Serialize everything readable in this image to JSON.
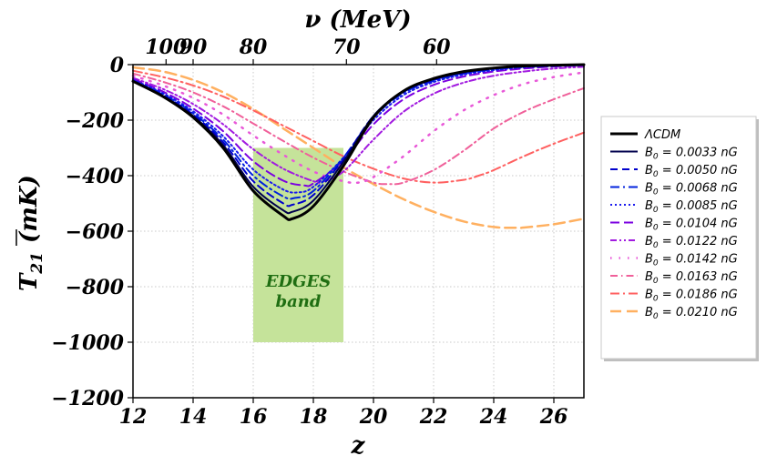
{
  "chart_data": {
    "type": "line",
    "xlabel": "z",
    "ylabel_main": "T",
    "ylabel_sub": "21",
    "ylabel_unit": "(mK)",
    "top_axis_label": "ν (MeV)",
    "xlim": [
      12,
      27
    ],
    "ylim": [
      -1200,
      0
    ],
    "x_ticks": [
      12,
      14,
      16,
      18,
      20,
      22,
      24,
      26
    ],
    "x_tick_labels": [
      "12",
      "14",
      "16",
      "18",
      "20",
      "22",
      "24",
      "26"
    ],
    "y_ticks": [
      0,
      -200,
      -400,
      -600,
      -800,
      -1000,
      -1200
    ],
    "y_tick_labels": [
      "0",
      "−200",
      "−400",
      "−600",
      "−800",
      "−1000",
      "−1200"
    ],
    "top_ticks": [
      {
        "label": "100",
        "z": 13.1
      },
      {
        "label": "90",
        "z": 14.0
      },
      {
        "label": "80",
        "z": 16.0
      },
      {
        "label": "70",
        "z": 19.1
      },
      {
        "label": "60",
        "z": 22.1
      }
    ],
    "grid": true,
    "band": {
      "label_line1": "EDGES",
      "label_line2": "band",
      "x_range": [
        16,
        19
      ],
      "y_range": [
        -1000,
        -300
      ]
    },
    "legend_position": "right",
    "series": [
      {
        "name": "ΛCDM",
        "legend_main": "ΛCDM",
        "legend_sub": "",
        "legend_val": "",
        "color": "#000000",
        "dash": "solid",
        "width": 3,
        "x": [
          12,
          13,
          14,
          15,
          16,
          17,
          17.3,
          18,
          19,
          20,
          21,
          22,
          23,
          24,
          25,
          26,
          27
        ],
        "y": [
          -60,
          -115,
          -190,
          -300,
          -455,
          -545,
          -555,
          -510,
          -365,
          -190,
          -95,
          -50,
          -25,
          -12,
          -5,
          -2,
          0
        ]
      },
      {
        "name": "B0 = 0.0033 nG",
        "legend_main": "B",
        "legend_sub": "0",
        "legend_val": " = 0.0033 nG",
        "color": "#00004d",
        "dash": "solid",
        "width": 2,
        "x": [
          12,
          13,
          14,
          15,
          16,
          17,
          17.3,
          18,
          19,
          20,
          21,
          22,
          23,
          24,
          25,
          26,
          27
        ],
        "y": [
          -60,
          -113,
          -185,
          -290,
          -440,
          -525,
          -530,
          -490,
          -350,
          -185,
          -95,
          -52,
          -27,
          -13,
          -6,
          -3,
          -1
        ]
      },
      {
        "name": "B0 = 0.0050 nG",
        "legend_main": "B",
        "legend_sub": "0",
        "legend_val": " = 0.0050 nG",
        "color": "#0000cc",
        "dash": "8,5",
        "width": 2,
        "x": [
          12,
          13,
          14,
          15,
          16,
          17,
          17.3,
          18,
          19,
          20,
          21,
          22,
          23,
          24,
          25,
          26,
          27
        ],
        "y": [
          -58,
          -110,
          -180,
          -280,
          -420,
          -500,
          -505,
          -470,
          -340,
          -185,
          -98,
          -55,
          -30,
          -15,
          -7,
          -3,
          -1
        ]
      },
      {
        "name": "B0 = 0.0068 nG",
        "legend_main": "B",
        "legend_sub": "0",
        "legend_val": " = 0.0068 nG",
        "color": "#0022dd",
        "dash": "10,4,2,4",
        "width": 2,
        "x": [
          12,
          13,
          14,
          15,
          16,
          17,
          17.4,
          18,
          19,
          20,
          21,
          22,
          23,
          24,
          25,
          26,
          27
        ],
        "y": [
          -57,
          -107,
          -175,
          -270,
          -400,
          -475,
          -480,
          -455,
          -335,
          -190,
          -102,
          -58,
          -32,
          -17,
          -8,
          -4,
          -2
        ]
      },
      {
        "name": "B0 = 0.0085 nG",
        "legend_main": "B",
        "legend_sub": "0",
        "legend_val": " = 0.0085 nG",
        "color": "#1a1aee",
        "dash": "2,3",
        "width": 2,
        "x": [
          12,
          13,
          14,
          15,
          16,
          17,
          17.5,
          18,
          19,
          20,
          21,
          22,
          23,
          24,
          25,
          26,
          27
        ],
        "y": [
          -55,
          -103,
          -168,
          -258,
          -378,
          -450,
          -460,
          -440,
          -335,
          -200,
          -110,
          -63,
          -36,
          -20,
          -10,
          -5,
          -2
        ]
      },
      {
        "name": "B0 = 0.0104 nG",
        "legend_main": "B",
        "legend_sub": "0",
        "legend_val": " = 0.0104 nG",
        "color": "#7b00e0",
        "dash": "10,5",
        "width": 2,
        "x": [
          12,
          13,
          14,
          15,
          16,
          17,
          17.7,
          18,
          19,
          20,
          21,
          22,
          23,
          24,
          25,
          26,
          27
        ],
        "y": [
          -52,
          -97,
          -158,
          -240,
          -348,
          -418,
          -435,
          -428,
          -345,
          -215,
          -125,
          -73,
          -43,
          -25,
          -14,
          -7,
          -3
        ]
      },
      {
        "name": "B0 = 0.0122 nG",
        "legend_main": "B",
        "legend_sub": "0",
        "legend_val": " = 0.0122 nG",
        "color": "#a21be0",
        "dash": "7,3,2,3,2,3",
        "width": 2,
        "x": [
          12,
          13,
          14,
          15,
          16,
          17,
          18,
          18.3,
          19,
          20,
          21,
          22,
          23,
          24,
          25,
          26,
          27
        ],
        "y": [
          -48,
          -88,
          -142,
          -215,
          -305,
          -375,
          -420,
          -422,
          -385,
          -270,
          -170,
          -105,
          -65,
          -40,
          -25,
          -14,
          -8
        ]
      },
      {
        "name": "B0 = 0.0142 nG",
        "legend_main": "B",
        "legend_sub": "0",
        "legend_val": " = 0.0142 nG",
        "color": "#e858d8",
        "dash": "1.5,8",
        "width": 2.5,
        "x": [
          12,
          13,
          14,
          15,
          16,
          17,
          18,
          19,
          19.5,
          20,
          21,
          22,
          23,
          24,
          25,
          26,
          27
        ],
        "y": [
          -40,
          -75,
          -120,
          -180,
          -255,
          -325,
          -385,
          -420,
          -425,
          -405,
          -330,
          -240,
          -165,
          -110,
          -70,
          -45,
          -28
        ]
      },
      {
        "name": "B0 = 0.0163 nG",
        "legend_main": "B",
        "legend_sub": "0",
        "legend_val": " = 0.0163 nG",
        "color": "#f0609a",
        "dash": "8,4,1.5,4",
        "width": 2,
        "x": [
          12,
          13,
          14,
          15,
          16,
          17,
          18,
          19,
          20,
          20.5,
          21,
          22,
          23,
          24,
          25,
          26,
          27
        ],
        "y": [
          -32,
          -62,
          -100,
          -150,
          -212,
          -275,
          -335,
          -385,
          -425,
          -430,
          -425,
          -380,
          -310,
          -230,
          -170,
          -125,
          -85
        ]
      },
      {
        "name": "B0 = 0.0186 nG",
        "legend_main": "B",
        "legend_sub": "0",
        "legend_val": " = 0.0186 nG",
        "color": "#ff6060",
        "dash": "10,4,2,4",
        "width": 2,
        "x": [
          12,
          13,
          14,
          15,
          16,
          17,
          18,
          19,
          20,
          21,
          22,
          23,
          23.5,
          24,
          25,
          26,
          27
        ],
        "y": [
          -22,
          -45,
          -75,
          -115,
          -165,
          -220,
          -275,
          -330,
          -375,
          -410,
          -425,
          -415,
          -400,
          -380,
          -330,
          -285,
          -245
        ]
      },
      {
        "name": "B0 = 0.0210 nG",
        "legend_main": "B",
        "legend_sub": "0",
        "legend_val": " = 0.0210 nG",
        "color": "#ffb060",
        "dash": "12,6",
        "width": 2.5,
        "x": [
          12,
          13,
          14,
          15,
          16,
          17,
          18,
          19,
          20,
          21,
          22,
          23,
          24,
          24.8,
          25,
          26,
          27
        ],
        "y": [
          -10,
          -25,
          -55,
          -100,
          -160,
          -230,
          -300,
          -370,
          -430,
          -485,
          -530,
          -565,
          -585,
          -588,
          -587,
          -575,
          -555
        ]
      }
    ]
  }
}
